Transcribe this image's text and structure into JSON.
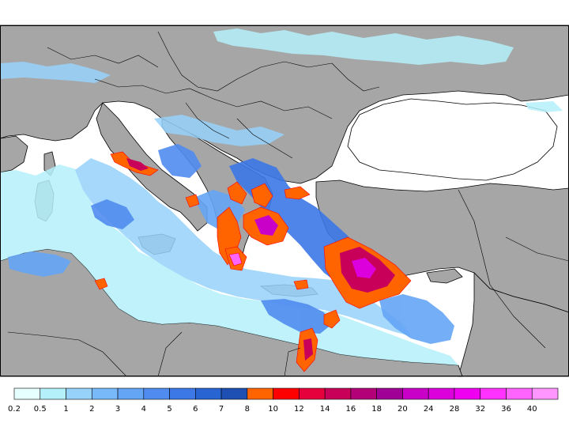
{
  "map": {
    "land_color": "#a6a6a6",
    "sea_color": "#ffffff",
    "border_color": "#000000"
  },
  "legend": {
    "swatches": [
      {
        "color": "#e6ffff"
      },
      {
        "color": "#b4f0fa"
      },
      {
        "color": "#96d2fa"
      },
      {
        "color": "#78b9fa"
      },
      {
        "color": "#64a5f5"
      },
      {
        "color": "#508cf0"
      },
      {
        "color": "#3c78e6"
      },
      {
        "color": "#2864d2"
      },
      {
        "color": "#1e50b4"
      },
      {
        "color": "#ff6400"
      },
      {
        "color": "#ff0000"
      },
      {
        "color": "#e6003c"
      },
      {
        "color": "#c8005a"
      },
      {
        "color": "#b40078"
      },
      {
        "color": "#a00096"
      },
      {
        "color": "#c800c8"
      },
      {
        "color": "#dc00dc"
      },
      {
        "color": "#f000f0"
      },
      {
        "color": "#ff32ff"
      },
      {
        "color": "#ff64ff"
      },
      {
        "color": "#ff96ff"
      }
    ],
    "labels": [
      "0.2",
      "0.5",
      "1",
      "2",
      "3",
      "4",
      "5",
      "6",
      "7",
      "8",
      "10",
      "12",
      "14",
      "16",
      "18",
      "20",
      "24",
      "28",
      "32",
      "36",
      "40"
    ]
  }
}
